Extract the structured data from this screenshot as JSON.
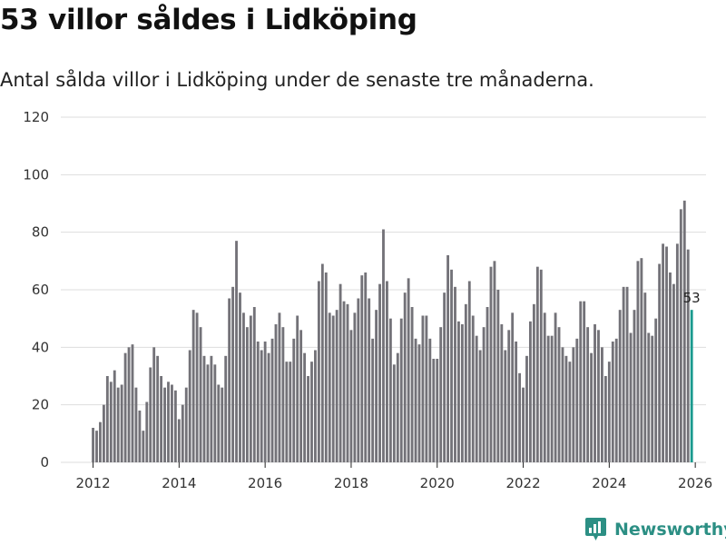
{
  "title": "53 villor såldes i Lidköping",
  "subtitle": "Antal sålda villor i Lidköping under de senaste tre månaderna.",
  "brand": "Newsworthy",
  "colors": {
    "bar": "#737278",
    "highlight": "#1a9a8e",
    "brand": "#2c8f84",
    "grid": "#dddddd"
  },
  "chart_data": {
    "type": "bar",
    "title": "53 villor såldes i Lidköping",
    "subtitle": "Antal sålda villor i Lidköping under de senaste tre månaderna.",
    "xlabel": "",
    "ylabel": "",
    "ylim": [
      0,
      120
    ],
    "y_ticks": [
      0,
      20,
      40,
      60,
      80,
      100,
      120
    ],
    "x_tick_labels": [
      "2012",
      "2014",
      "2016",
      "2018",
      "2020",
      "2022",
      "2024",
      "2026"
    ],
    "x_range": [
      2011.25,
      2026.25
    ],
    "grid": true,
    "highlight_label": "53",
    "start": 2012.0,
    "step": 0.08333,
    "values": [
      12,
      11,
      14,
      20,
      30,
      28,
      32,
      26,
      27,
      38,
      40,
      41,
      26,
      18,
      11,
      21,
      33,
      40,
      37,
      30,
      26,
      28,
      27,
      25,
      15,
      20,
      26,
      39,
      53,
      52,
      47,
      37,
      34,
      37,
      34,
      27,
      26,
      37,
      57,
      61,
      77,
      59,
      52,
      47,
      51,
      54,
      42,
      39,
      42,
      38,
      43,
      48,
      52,
      47,
      35,
      35,
      43,
      51,
      46,
      38,
      30,
      35,
      39,
      63,
      69,
      66,
      52,
      51,
      53,
      62,
      56,
      55,
      46,
      52,
      57,
      65,
      66,
      57,
      43,
      53,
      62,
      81,
      63,
      50,
      34,
      38,
      50,
      59,
      64,
      54,
      43,
      41,
      51,
      51,
      43,
      36,
      36,
      47,
      59,
      72,
      67,
      61,
      49,
      48,
      55,
      63,
      51,
      44,
      39,
      47,
      54,
      68,
      70,
      60,
      48,
      39,
      46,
      52,
      42,
      31,
      26,
      37,
      49,
      55,
      68,
      67,
      52,
      44,
      44,
      52,
      47,
      40,
      37,
      35,
      40,
      43,
      56,
      56,
      47,
      38,
      48,
      46,
      40,
      30,
      35,
      42,
      43,
      53,
      61,
      61,
      45,
      53,
      70,
      71,
      59,
      45,
      44,
      50,
      69,
      76,
      75,
      66,
      62,
      76,
      88,
      91,
      74,
      53
    ]
  }
}
